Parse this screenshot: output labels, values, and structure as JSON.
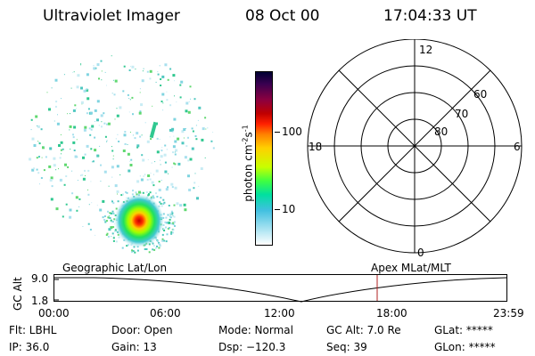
{
  "header": {
    "instrument": "Ultraviolet Imager",
    "date": "08 Oct 00",
    "time": "17:04:33 UT"
  },
  "colorbar": {
    "label": "photon cm",
    "label_sup1": "-2",
    "label_s": "s",
    "label_sup2": "-1",
    "tick_high": "100",
    "tick_low": "10",
    "scale": "log",
    "colors": [
      "#000033",
      "#3a0050",
      "#8b0040",
      "#c00000",
      "#ff2000",
      "#ff8000",
      "#ffd000",
      "#c8ff00",
      "#40ff40",
      "#00e0a0",
      "#40c0e0",
      "#a0e0f0",
      "#ffffff"
    ]
  },
  "polar_plot": {
    "mlt_labels": {
      "top": "12",
      "left": "18",
      "right": "6",
      "bottom": "0"
    },
    "lat_labels": [
      "60",
      "70",
      "80"
    ]
  },
  "timeline": {
    "ylabel": "GC Alt",
    "y_ticks": [
      "9.0",
      "1.8"
    ],
    "left_label": "Geographic Lat/Lon",
    "right_label": "Apex MLat/MLT",
    "x_ticks": [
      "00:00",
      "06:00",
      "12:00",
      "18:00",
      "23:59"
    ],
    "marker_color": "#b02020"
  },
  "status": {
    "row1": [
      "Flt: LBHL",
      "Door: Open",
      "Mode: Normal",
      "GC Alt: 7.0 Re",
      "GLat: *****"
    ],
    "row2": [
      "IP: 36.0",
      "Gain: 13",
      "Dsp: −120.3",
      "Seq: 39",
      "GLon: *****"
    ]
  }
}
